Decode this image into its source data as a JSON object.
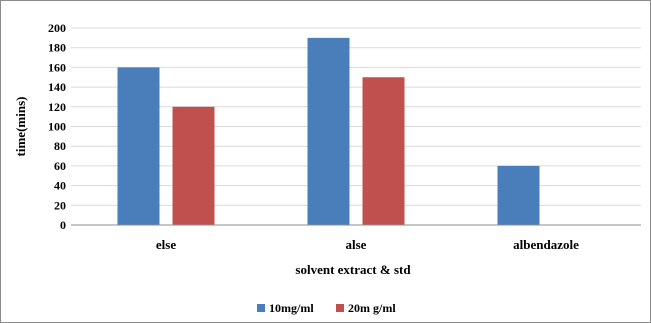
{
  "chart_data": {
    "type": "bar",
    "categories": [
      "else",
      "alse",
      "albendazole"
    ],
    "series": [
      {
        "name": "10mg/ml",
        "values": [
          160,
          190,
          60
        ],
        "color": "#4a7ebb"
      },
      {
        "name": "20m g/ml",
        "values": [
          120,
          150,
          null
        ],
        "color": "#c0504d"
      }
    ],
    "xlabel": "solvent extract & std",
    "ylabel": "time(mins)",
    "ylim": [
      0,
      200
    ],
    "yticks": [
      0,
      20,
      40,
      60,
      80,
      100,
      120,
      140,
      160,
      180,
      200
    ],
    "grid": true,
    "legend_position": "bottom"
  }
}
